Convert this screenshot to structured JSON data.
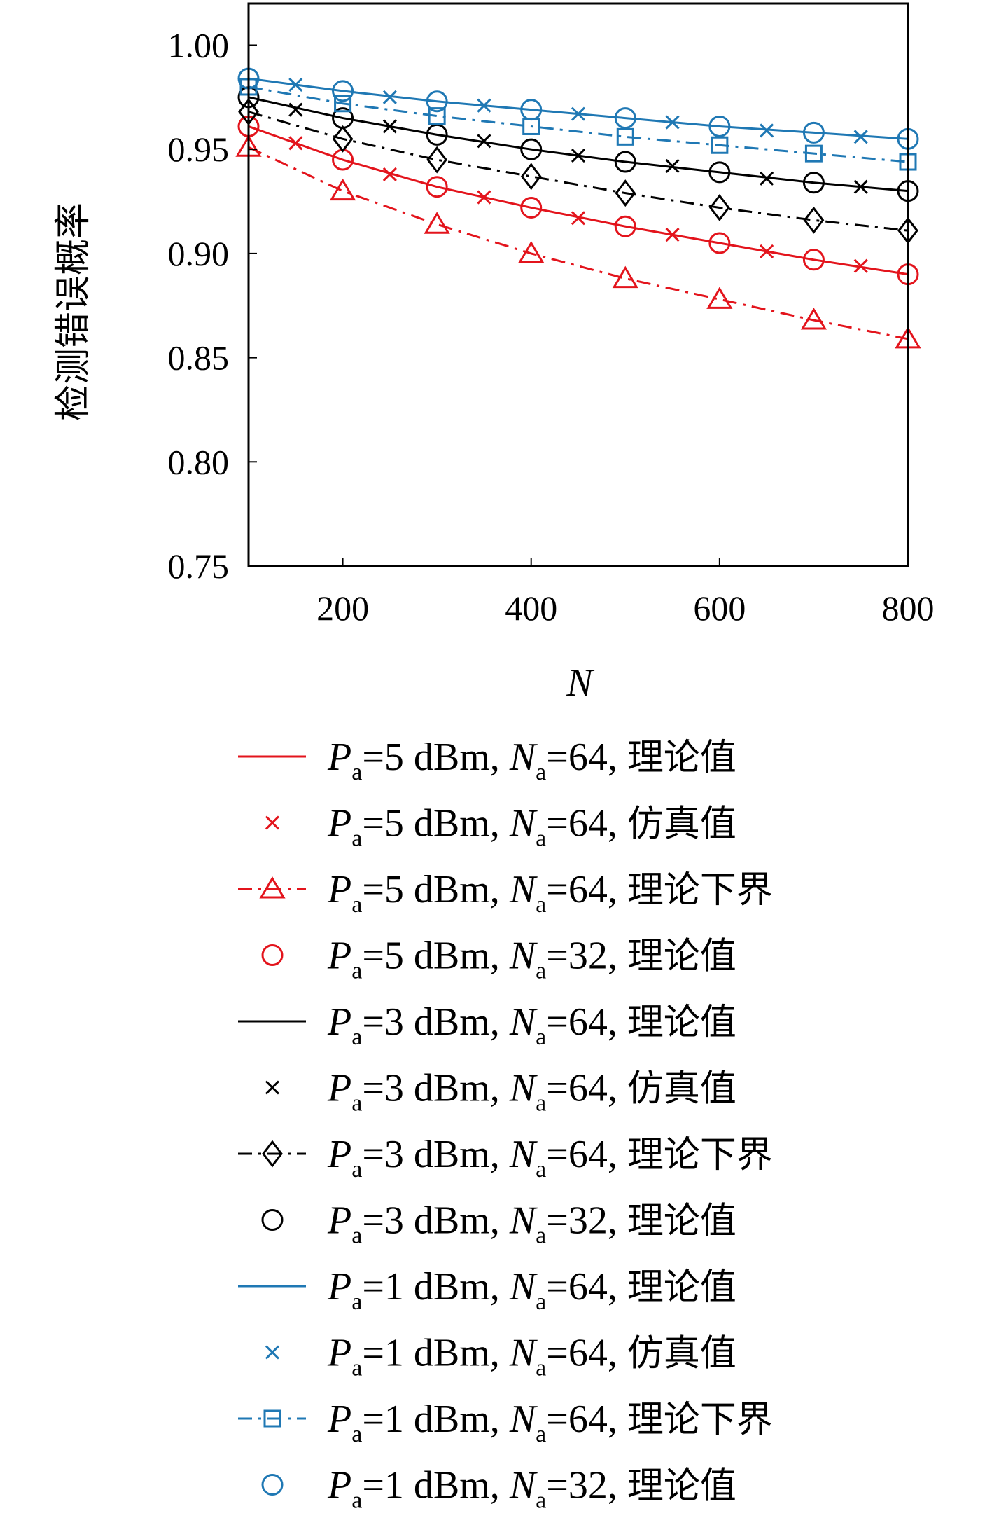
{
  "chart_data": {
    "type": "line",
    "xlabel": "N",
    "ylabel": "检测错误概率",
    "xlim": [
      100,
      800
    ],
    "ylim": [
      0.75,
      1.02
    ],
    "xticks": [
      200,
      400,
      600,
      800
    ],
    "xtick_labels": [
      "200",
      "400",
      "600",
      "800"
    ],
    "yticks": [
      0.75,
      0.8,
      0.85,
      0.9,
      0.95,
      1.0
    ],
    "ytick_labels": [
      "0.75",
      "0.80",
      "0.85",
      "0.90",
      "0.95",
      "1.00"
    ],
    "grid": false,
    "legend_position": "below",
    "colors": {
      "red": "#e3141c",
      "black": "#000000",
      "blue": "#1f78b4"
    },
    "series": [
      {
        "legend": "Pa=5 dBm, Na=64, 理论值",
        "power": "5",
        "antennas": "64",
        "kind": "理论值",
        "color": "red",
        "style": "solid",
        "marker": "none",
        "x": [
          100,
          200,
          300,
          400,
          500,
          600,
          700,
          800
        ],
        "y": [
          0.961,
          0.945,
          0.932,
          0.922,
          0.913,
          0.905,
          0.897,
          0.89
        ]
      },
      {
        "legend": "Pa=5 dBm, Na=64, 仿真值",
        "power": "5",
        "antennas": "64",
        "kind": "仿真值",
        "color": "red",
        "style": "none",
        "marker": "x",
        "x": [
          150,
          250,
          350,
          450,
          550,
          650,
          750
        ],
        "y": [
          0.953,
          0.938,
          0.927,
          0.917,
          0.909,
          0.901,
          0.894
        ]
      },
      {
        "legend": "Pa=5 dBm, Na=64, 理论下界",
        "power": "5",
        "antennas": "64",
        "kind": "理论下界",
        "color": "red",
        "style": "dashdot",
        "marker": "triangle",
        "x": [
          100,
          200,
          300,
          400,
          500,
          600,
          700,
          800
        ],
        "y": [
          0.951,
          0.93,
          0.914,
          0.9,
          0.888,
          0.878,
          0.868,
          0.859
        ]
      },
      {
        "legend": "Pa=5 dBm, Na=32, 理论值",
        "power": "5",
        "antennas": "32",
        "kind": "理论值",
        "color": "red",
        "style": "none",
        "marker": "circle",
        "x": [
          100,
          200,
          300,
          400,
          500,
          600,
          700,
          800
        ],
        "y": [
          0.961,
          0.945,
          0.932,
          0.922,
          0.913,
          0.905,
          0.897,
          0.89
        ]
      },
      {
        "legend": "Pa=3 dBm, Na=64, 理论值",
        "power": "3",
        "antennas": "64",
        "kind": "理论值",
        "color": "black",
        "style": "solid",
        "marker": "none",
        "x": [
          100,
          200,
          300,
          400,
          500,
          600,
          700,
          800
        ],
        "y": [
          0.975,
          0.965,
          0.957,
          0.95,
          0.944,
          0.939,
          0.934,
          0.93
        ]
      },
      {
        "legend": "Pa=3 dBm, Na=64, 仿真值",
        "power": "3",
        "antennas": "64",
        "kind": "仿真值",
        "color": "black",
        "style": "none",
        "marker": "x",
        "x": [
          150,
          250,
          350,
          450,
          550,
          650,
          750
        ],
        "y": [
          0.969,
          0.961,
          0.954,
          0.947,
          0.942,
          0.936,
          0.932
        ]
      },
      {
        "legend": "Pa=3 dBm, Na=64, 理论下界",
        "power": "3",
        "antennas": "64",
        "kind": "理论下界",
        "color": "black",
        "style": "dashdot",
        "marker": "diamond",
        "x": [
          100,
          200,
          300,
          400,
          500,
          600,
          700,
          800
        ],
        "y": [
          0.968,
          0.955,
          0.945,
          0.937,
          0.929,
          0.922,
          0.916,
          0.911
        ]
      },
      {
        "legend": "Pa=3 dBm, Na=32, 理论值",
        "power": "3",
        "antennas": "32",
        "kind": "理论值",
        "color": "black",
        "style": "none",
        "marker": "circle",
        "x": [
          100,
          200,
          300,
          400,
          500,
          600,
          700,
          800
        ],
        "y": [
          0.975,
          0.965,
          0.957,
          0.95,
          0.944,
          0.939,
          0.934,
          0.93
        ]
      },
      {
        "legend": "Pa=1 dBm, Na=64, 理论值",
        "power": "1",
        "antennas": "64",
        "kind": "理论值",
        "color": "blue",
        "style": "solid",
        "marker": "none",
        "x": [
          100,
          200,
          300,
          400,
          500,
          600,
          700,
          800
        ],
        "y": [
          0.984,
          0.978,
          0.973,
          0.969,
          0.965,
          0.961,
          0.958,
          0.955
        ]
      },
      {
        "legend": "Pa=1 dBm, Na=64, 仿真值",
        "power": "1",
        "antennas": "64",
        "kind": "仿真值",
        "color": "blue",
        "style": "none",
        "marker": "x",
        "x": [
          150,
          250,
          350,
          450,
          550,
          650,
          750
        ],
        "y": [
          0.981,
          0.975,
          0.971,
          0.967,
          0.963,
          0.959,
          0.956
        ]
      },
      {
        "legend": "Pa=1 dBm, Na=64, 理论下界",
        "power": "1",
        "antennas": "64",
        "kind": "理论下界",
        "color": "blue",
        "style": "dashdot",
        "marker": "square",
        "x": [
          100,
          200,
          300,
          400,
          500,
          600,
          700,
          800
        ],
        "y": [
          0.98,
          0.972,
          0.966,
          0.961,
          0.956,
          0.952,
          0.948,
          0.944
        ]
      },
      {
        "legend": "Pa=1 dBm, Na=32, 理论值",
        "power": "1",
        "antennas": "32",
        "kind": "理论值",
        "color": "blue",
        "style": "none",
        "marker": "circle",
        "x": [
          100,
          200,
          300,
          400,
          500,
          600,
          700,
          800
        ],
        "y": [
          0.984,
          0.978,
          0.973,
          0.969,
          0.965,
          0.961,
          0.958,
          0.955
        ]
      }
    ]
  }
}
